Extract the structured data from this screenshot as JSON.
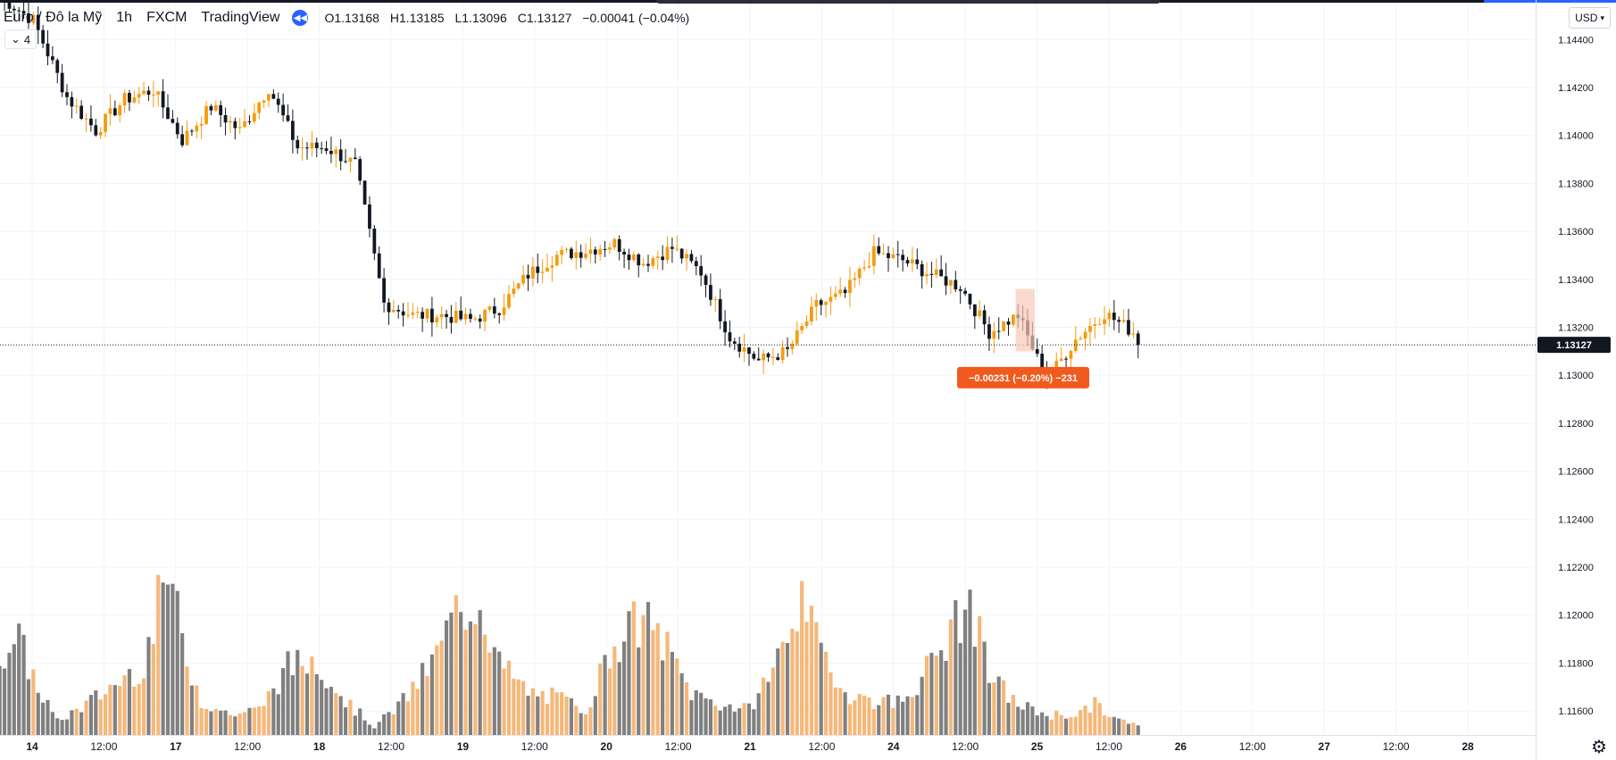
{
  "header": {
    "symbol": "Euro / Đô la Mỹ",
    "interval": "1h",
    "exchange": "FXCM",
    "source": "TradingView",
    "ohlc": {
      "open": "O1.13168",
      "high": "H1.13185",
      "low": "L1.13096",
      "close": "C1.13127",
      "change": "−0.00041 (−0.04%)"
    }
  },
  "indicators_toggle": {
    "count": "4"
  },
  "currency_button": {
    "label": "USD"
  },
  "colors": {
    "up": "#f39c12",
    "down": "#131722",
    "volume_up": "#f5b87a",
    "volume_down": "#808080",
    "current_price_label": "#131722",
    "measure_label": "#f05a1e",
    "measure_box": "#f8c9b6"
  },
  "chart_data": {
    "type": "candlestick",
    "x_tick_labels": [
      "14",
      "12:00",
      "17",
      "12:00",
      "18",
      "12:00",
      "19",
      "12:00",
      "20",
      "12:00",
      "21",
      "12:00",
      "24",
      "12:00",
      "25",
      "12:00",
      "26",
      "12:00",
      "27",
      "12:00",
      "28"
    ],
    "y_tick_labels": [
      "1.14400",
      "1.14200",
      "1.14000",
      "1.13800",
      "1.13600",
      "1.13400",
      "1.13200",
      "1.13000",
      "1.12800",
      "1.12600",
      "1.12400",
      "1.12200",
      "1.12000",
      "1.11800",
      "1.11600"
    ],
    "ylim": [
      1.115,
      1.1455
    ],
    "grid": true,
    "current_price": {
      "value": 1.13127,
      "label": "1.13127"
    },
    "measure_label": "−0.00231 (−0.20%) −231",
    "key_prices": [
      {
        "bar": 0,
        "value": 1.1458
      },
      {
        "bar": 7,
        "value": 1.1448
      },
      {
        "bar": 14,
        "value": 1.1416
      },
      {
        "bar": 20,
        "value": 1.1402
      },
      {
        "bar": 26,
        "value": 1.1415
      },
      {
        "bar": 32,
        "value": 1.1419
      },
      {
        "bar": 38,
        "value": 1.1398
      },
      {
        "bar": 44,
        "value": 1.1412
      },
      {
        "bar": 50,
        "value": 1.1402
      },
      {
        "bar": 56,
        "value": 1.142
      },
      {
        "bar": 62,
        "value": 1.1395
      },
      {
        "bar": 68,
        "value": 1.1395
      },
      {
        "bar": 74,
        "value": 1.1388
      },
      {
        "bar": 80,
        "value": 1.133
      },
      {
        "bar": 86,
        "value": 1.1325
      },
      {
        "bar": 92,
        "value": 1.1325
      },
      {
        "bar": 98,
        "value": 1.1323
      },
      {
        "bar": 104,
        "value": 1.1328
      },
      {
        "bar": 110,
        "value": 1.1342
      },
      {
        "bar": 116,
        "value": 1.135
      },
      {
        "bar": 122,
        "value": 1.1352
      },
      {
        "bar": 128,
        "value": 1.1355
      },
      {
        "bar": 134,
        "value": 1.1347
      },
      {
        "bar": 140,
        "value": 1.1353
      },
      {
        "bar": 146,
        "value": 1.1343
      },
      {
        "bar": 152,
        "value": 1.1316
      },
      {
        "bar": 158,
        "value": 1.1306
      },
      {
        "bar": 164,
        "value": 1.131
      },
      {
        "bar": 170,
        "value": 1.1329
      },
      {
        "bar": 176,
        "value": 1.1334
      },
      {
        "bar": 182,
        "value": 1.1351
      },
      {
        "bar": 188,
        "value": 1.1348
      },
      {
        "bar": 194,
        "value": 1.1342
      },
      {
        "bar": 200,
        "value": 1.1337
      },
      {
        "bar": 206,
        "value": 1.1318
      },
      {
        "bar": 212,
        "value": 1.1325
      },
      {
        "bar": 218,
        "value": 1.1298
      },
      {
        "bar": 224,
        "value": 1.1315
      },
      {
        "bar": 230,
        "value": 1.1326
      },
      {
        "bar": 236,
        "value": 1.1318
      },
      {
        "bar": 237,
        "value": 1.13127
      }
    ],
    "volume_profile": [
      {
        "bar": 0,
        "value": 0.5
      },
      {
        "bar": 4,
        "value": 0.55
      },
      {
        "bar": 8,
        "value": 0.28
      },
      {
        "bar": 12,
        "value": 0.08
      },
      {
        "bar": 18,
        "value": 0.18
      },
      {
        "bar": 24,
        "value": 0.3
      },
      {
        "bar": 30,
        "value": 0.42
      },
      {
        "bar": 35,
        "value": 0.98
      },
      {
        "bar": 38,
        "value": 0.55
      },
      {
        "bar": 42,
        "value": 0.2
      },
      {
        "bar": 48,
        "value": 0.12
      },
      {
        "bar": 54,
        "value": 0.15
      },
      {
        "bar": 60,
        "value": 0.4
      },
      {
        "bar": 66,
        "value": 0.45
      },
      {
        "bar": 72,
        "value": 0.2
      },
      {
        "bar": 78,
        "value": 0.05
      },
      {
        "bar": 84,
        "value": 0.2
      },
      {
        "bar": 90,
        "value": 0.42
      },
      {
        "bar": 95,
        "value": 0.72
      },
      {
        "bar": 100,
        "value": 0.8
      },
      {
        "bar": 104,
        "value": 0.42
      },
      {
        "bar": 110,
        "value": 0.25
      },
      {
        "bar": 116,
        "value": 0.22
      },
      {
        "bar": 122,
        "value": 0.15
      },
      {
        "bar": 128,
        "value": 0.55
      },
      {
        "bar": 134,
        "value": 0.68
      },
      {
        "bar": 138,
        "value": 0.55
      },
      {
        "bar": 144,
        "value": 0.25
      },
      {
        "bar": 150,
        "value": 0.18
      },
      {
        "bar": 156,
        "value": 0.15
      },
      {
        "bar": 162,
        "value": 0.45
      },
      {
        "bar": 166,
        "value": 0.8
      },
      {
        "bar": 170,
        "value": 0.55
      },
      {
        "bar": 176,
        "value": 0.25
      },
      {
        "bar": 182,
        "value": 0.2
      },
      {
        "bar": 188,
        "value": 0.2
      },
      {
        "bar": 194,
        "value": 0.42
      },
      {
        "bar": 198,
        "value": 0.6
      },
      {
        "bar": 202,
        "value": 0.78
      },
      {
        "bar": 206,
        "value": 0.35
      },
      {
        "bar": 212,
        "value": 0.18
      },
      {
        "bar": 218,
        "value": 0.12
      },
      {
        "bar": 224,
        "value": 0.12
      },
      {
        "bar": 228,
        "value": 0.18
      },
      {
        "bar": 232,
        "value": 0.1
      },
      {
        "bar": 237,
        "value": 0.05
      }
    ],
    "bar_count": 238
  }
}
